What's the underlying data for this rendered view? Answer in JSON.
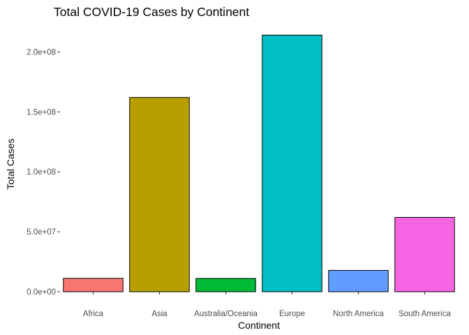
{
  "chart_data": {
    "type": "bar",
    "title": "Total COVID-19 Cases by Continent",
    "xlabel": "Continent",
    "ylabel": "Total Cases",
    "categories": [
      "Africa",
      "Asia",
      "Australia/Oceania",
      "Europe",
      "North America",
      "South America"
    ],
    "values": [
      11200000,
      162000000,
      11100000,
      214000000,
      17800000,
      62000000
    ],
    "colors": [
      "#F8766D",
      "#B79F00",
      "#00BA38",
      "#00BFC4",
      "#619CFF",
      "#F564E3"
    ],
    "ylim": [
      0,
      220000000
    ],
    "yticks": [
      0,
      50000000,
      100000000,
      150000000,
      200000000
    ],
    "ytick_labels": [
      "0.0e+00",
      "5.0e+07",
      "1.0e+08",
      "1.5e+08",
      "2.0e+08"
    ],
    "grid": false,
    "legend": "none"
  }
}
